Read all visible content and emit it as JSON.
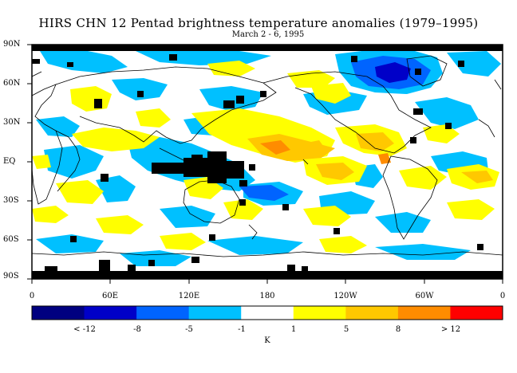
{
  "title": "HIRS CHN 12 Pentad brightness temperature anomalies (1979–1995)",
  "subtitle": "March 2 - 6, 1995",
  "map": {
    "y_tick_labels": [
      "90N",
      "60N",
      "30N",
      "EQ",
      "30S",
      "60S",
      "90S"
    ],
    "x_tick_labels": [
      "0",
      "60E",
      "120E",
      "180",
      "120W",
      "60W",
      "0"
    ]
  },
  "colorbar": {
    "colors": [
      "#000080",
      "#0000c8",
      "#0064ff",
      "#00c0ff",
      "#ffffff",
      "#ffff00",
      "#ffc800",
      "#ff8c00",
      "#ff0000"
    ],
    "labels": [
      "< -12",
      "-8",
      "-5",
      "-1",
      "1",
      "5",
      "8",
      "> 12"
    ],
    "unit": "K"
  },
  "colors": {
    "frame": "#000000",
    "missing": "#000000",
    "coastline": "#000000"
  }
}
